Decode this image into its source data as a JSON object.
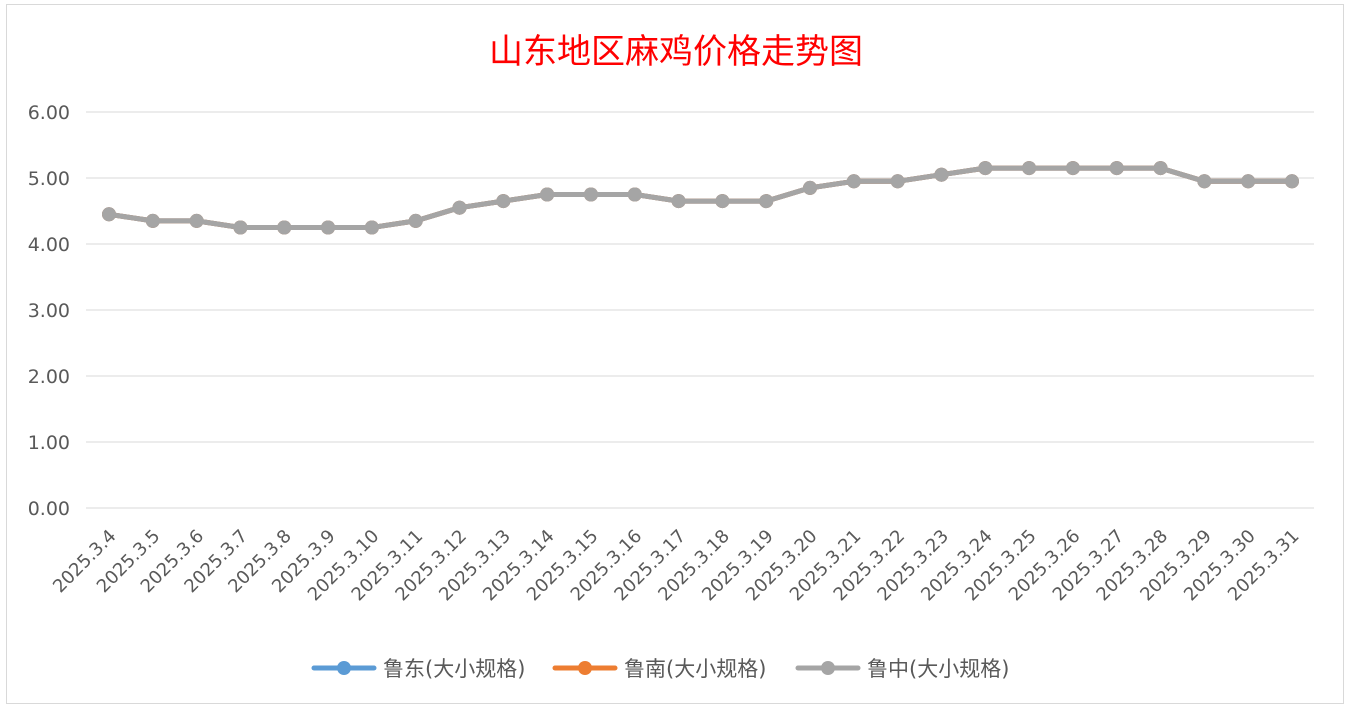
{
  "chart_data": {
    "type": "line",
    "title": "山东地区麻鸡价格走势图",
    "xlabel": "",
    "ylabel": "",
    "ylim": [
      0,
      6
    ],
    "yticks": [
      "0.00",
      "1.00",
      "2.00",
      "3.00",
      "4.00",
      "5.00",
      "6.00"
    ],
    "grid": true,
    "legend_position": "bottom",
    "categories": [
      "2025.3.4",
      "2025.3.5",
      "2025.3.6",
      "2025.3.7",
      "2025.3.8",
      "2025.3.9",
      "2025.3.10",
      "2025.3.11",
      "2025.3.12",
      "2025.3.13",
      "2025.3.14",
      "2025.3.15",
      "2025.3.16",
      "2025.3.17",
      "2025.3.18",
      "2025.3.19",
      "2025.3.20",
      "2025.3.21",
      "2025.3.22",
      "2025.3.23",
      "2025.3.24",
      "2025.3.25",
      "2025.3.26",
      "2025.3.27",
      "2025.3.28",
      "2025.3.29",
      "2025.3.30",
      "2025.3.31"
    ],
    "series": [
      {
        "name": "鲁东(大小规格)",
        "color": "#5b9bd5",
        "values": [
          4.45,
          4.35,
          4.35,
          4.25,
          4.25,
          4.25,
          4.25,
          4.35,
          4.55,
          4.65,
          4.75,
          4.75,
          4.75,
          4.65,
          4.65,
          4.65,
          4.85,
          4.95,
          4.95,
          5.05,
          5.15,
          5.15,
          5.15,
          5.15,
          5.15,
          4.95,
          4.95,
          4.95
        ]
      },
      {
        "name": "鲁南(大小规格)",
        "color": "#ed7d31",
        "values": [
          4.45,
          4.35,
          4.35,
          4.25,
          4.25,
          4.25,
          4.25,
          4.35,
          4.55,
          4.65,
          4.75,
          4.75,
          4.75,
          4.65,
          4.65,
          4.65,
          4.85,
          4.95,
          4.95,
          5.05,
          5.15,
          5.15,
          5.15,
          5.15,
          5.15,
          4.95,
          4.95,
          4.95
        ]
      },
      {
        "name": "鲁中(大小规格)",
        "color": "#a5a5a5",
        "values": [
          4.45,
          4.35,
          4.35,
          4.25,
          4.25,
          4.25,
          4.25,
          4.35,
          4.55,
          4.65,
          4.75,
          4.75,
          4.75,
          4.65,
          4.65,
          4.65,
          4.85,
          4.95,
          4.95,
          5.05,
          5.15,
          5.15,
          5.15,
          5.15,
          5.15,
          4.95,
          4.95,
          4.95
        ]
      }
    ]
  }
}
